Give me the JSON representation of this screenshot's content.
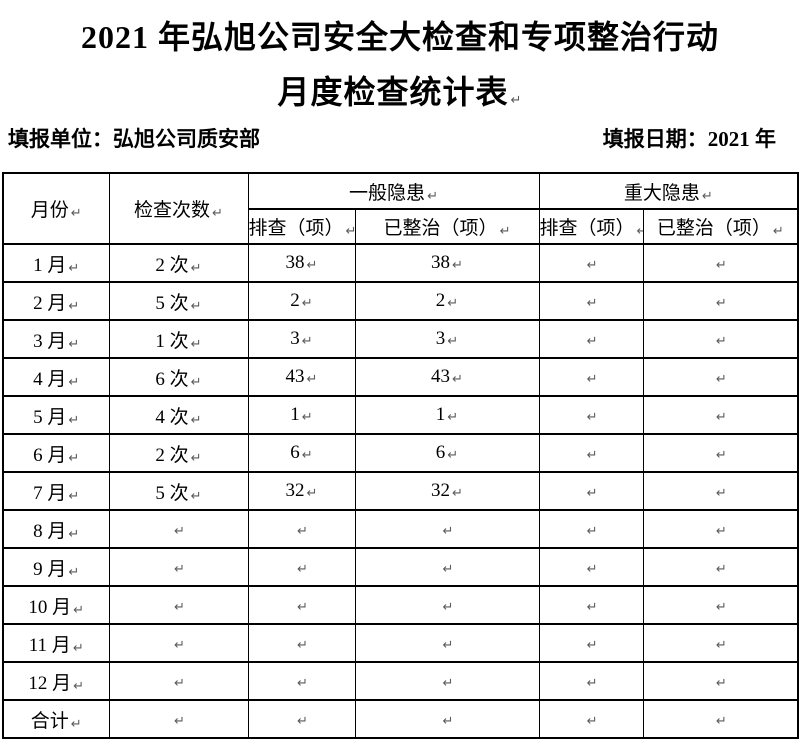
{
  "title": {
    "line1": "2021 年弘旭公司安全大检查和专项整治行动",
    "line2": "月度检查统计表"
  },
  "meta": {
    "unit": "填报单位：弘旭公司质安部",
    "date": "填报日期：2021 年"
  },
  "marks": {
    "paragraph": "↵"
  },
  "table": {
    "headers": {
      "month": "月份",
      "inspections": "检查次数",
      "general": "一般隐患",
      "major": "重大隐患",
      "checked": "排查（项）",
      "fixed": "已整治（项）"
    },
    "rows": [
      {
        "month": "1 月",
        "inspections": "2 次",
        "general_checked": "38",
        "general_fixed": "38",
        "major_checked": "",
        "major_fixed": ""
      },
      {
        "month": "2 月",
        "inspections": "5 次",
        "general_checked": "2",
        "general_fixed": "2",
        "major_checked": "",
        "major_fixed": ""
      },
      {
        "month": "3 月",
        "inspections": "1 次",
        "general_checked": "3",
        "general_fixed": "3",
        "major_checked": "",
        "major_fixed": ""
      },
      {
        "month": "4 月",
        "inspections": "6 次",
        "general_checked": "43",
        "general_fixed": "43",
        "major_checked": "",
        "major_fixed": ""
      },
      {
        "month": "5 月",
        "inspections": "4 次",
        "general_checked": "1",
        "general_fixed": "1",
        "major_checked": "",
        "major_fixed": ""
      },
      {
        "month": "6 月",
        "inspections": "2 次",
        "general_checked": "6",
        "general_fixed": "6",
        "major_checked": "",
        "major_fixed": ""
      },
      {
        "month": "7 月",
        "inspections": "5 次",
        "general_checked": "32",
        "general_fixed": "32",
        "major_checked": "",
        "major_fixed": ""
      },
      {
        "month": "8 月",
        "inspections": "",
        "general_checked": "",
        "general_fixed": "",
        "major_checked": "",
        "major_fixed": ""
      },
      {
        "month": "9 月",
        "inspections": "",
        "general_checked": "",
        "general_fixed": "",
        "major_checked": "",
        "major_fixed": ""
      },
      {
        "month": "10 月",
        "inspections": "",
        "general_checked": "",
        "general_fixed": "",
        "major_checked": "",
        "major_fixed": ""
      },
      {
        "month": "11 月",
        "inspections": "",
        "general_checked": "",
        "general_fixed": "",
        "major_checked": "",
        "major_fixed": ""
      },
      {
        "month": "12 月",
        "inspections": "",
        "general_checked": "",
        "general_fixed": "",
        "major_checked": "",
        "major_fixed": ""
      },
      {
        "month": "合计",
        "inspections": "",
        "general_checked": "",
        "general_fixed": "",
        "major_checked": "",
        "major_fixed": ""
      }
    ]
  }
}
